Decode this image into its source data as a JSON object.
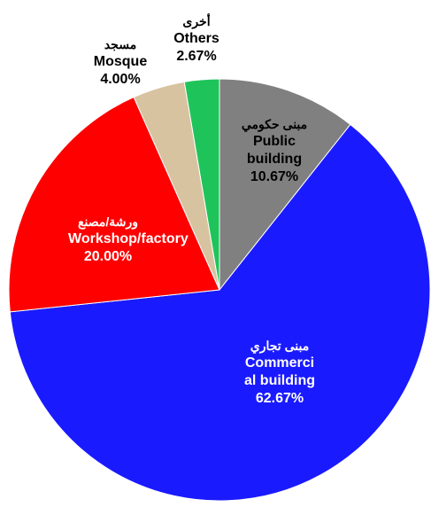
{
  "chart_data": {
    "type": "pie",
    "categories": [
      "Public building",
      "Commercial building",
      "Workshop/factory",
      "Mosque",
      "Others"
    ],
    "arabic_labels": [
      "مبنى حكومي",
      "مبنى تجاري",
      "ورشة/مصنع",
      "مسجد",
      "أخرى"
    ],
    "values": [
      10.67,
      62.67,
      20.0,
      4.0,
      2.67
    ],
    "value_labels": [
      "10.67%",
      "62.67%",
      "20.00%",
      "4.00%",
      "2.67%"
    ],
    "colors": [
      "#808080",
      "#1a1aff",
      "#ff0000",
      "#d8c3a0",
      "#1ec45a"
    ]
  }
}
